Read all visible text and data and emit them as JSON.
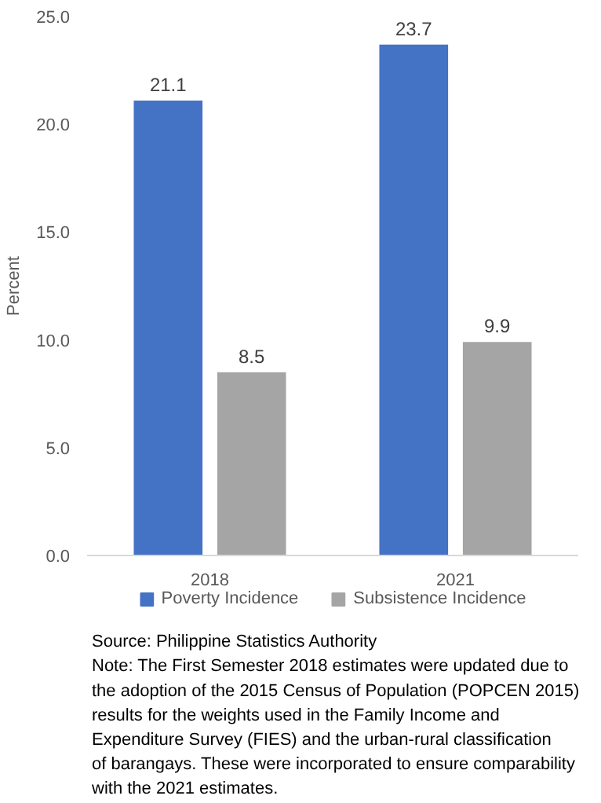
{
  "chart_data": {
    "type": "bar",
    "ylabel": "Percent",
    "categories": [
      "2018",
      "2021"
    ],
    "series": [
      {
        "name": "Poverty Incidence",
        "color": "#4472c4",
        "values": [
          21.1,
          23.7
        ]
      },
      {
        "name": "Subsistence Incidence",
        "color": "#a5a5a5",
        "values": [
          8.5,
          9.9
        ]
      }
    ],
    "ylim": [
      0,
      25
    ],
    "yticks": [
      {
        "value": 0,
        "label": "0.0"
      },
      {
        "value": 5,
        "label": "5.0"
      },
      {
        "value": 10,
        "label": "10.0"
      },
      {
        "value": 15,
        "label": "15.0"
      },
      {
        "value": 20,
        "label": "20.0"
      },
      {
        "value": 25,
        "label": "25.0"
      }
    ],
    "grid": false,
    "legend": "bottom",
    "data_labels": true,
    "annotations": [
      "Source: Philippine Statistics Authority",
      "Note: The First Semester 2018 estimates were updated due to the adoption of the 2015 Census of Population (POPCEN 2015) results for the weights used in the Family Income and Expenditure Survey (FIES) and the urban-rural classification of barangays.  These were incorporated to ensure comparability with the 2021 estimates."
    ]
  }
}
